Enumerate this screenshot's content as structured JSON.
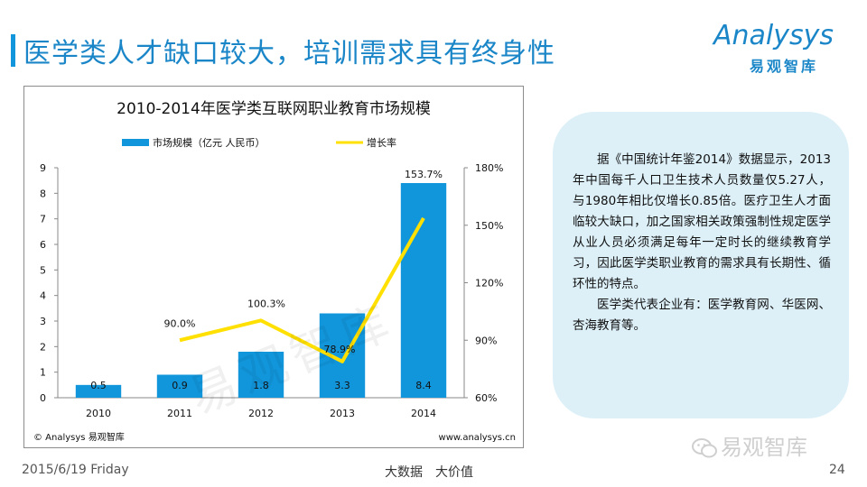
{
  "page": {
    "title": "医学类人才缺口较大，培训需求具有终身性",
    "logo_word": "Analysys",
    "logo_cn": "易观智库",
    "date": "2015/6/19 Friday",
    "slogan": [
      "大数据",
      "大价值"
    ],
    "page_number": "24",
    "wechat_label": "易观智库",
    "watermark": "易观智库"
  },
  "chart_data": {
    "type": "bar",
    "title": "2010-2014年医学类互联网职业教育市场规模",
    "categories": [
      "2010",
      "2011",
      "2012",
      "2013",
      "2014"
    ],
    "series": [
      {
        "name": "市场规模（亿元 人民币）",
        "type": "bar",
        "axis": "left",
        "color": "#1296db",
        "values": [
          0.5,
          0.9,
          1.8,
          3.3,
          8.4
        ],
        "labels": [
          "0.5",
          "0.9",
          "1.8",
          "3.3",
          "8.4"
        ]
      },
      {
        "name": "增长率",
        "type": "line",
        "axis": "right",
        "color": "#ffe000",
        "values": [
          null,
          90.0,
          100.3,
          78.9,
          153.7
        ],
        "labels": [
          "",
          "90.0%",
          "100.3%",
          "78.9%",
          "153.7%"
        ]
      }
    ],
    "left_axis": {
      "ylim": [
        0,
        9
      ],
      "ticks": [
        "0",
        "1",
        "2",
        "3",
        "4",
        "5",
        "6",
        "7",
        "8",
        "9"
      ]
    },
    "right_axis": {
      "ylim": [
        60,
        180
      ],
      "ticks": [
        "60%",
        "90%",
        "120%",
        "150%",
        "180%"
      ]
    },
    "legend_position": "top",
    "grid": false,
    "source_left": "© Analysys 易观智库",
    "source_right": "www.analysys.cn"
  },
  "callout": {
    "paragraphs": [
      "据《中国统计年鉴2014》数据显示，2013年中国每千人口卫生技术人员数量仅5.27人，与1980年相比仅增长0.85倍。医疗卫生人才面临较大缺口，加之国家相关政策强制性规定医学从业人员必须满足每年一定时长的继续教育学习，因此医学类职业教育的需求具有长期性、循环性的特点。",
      "医学类代表企业有：医学教育网、华医网、杏海教育等。"
    ]
  }
}
